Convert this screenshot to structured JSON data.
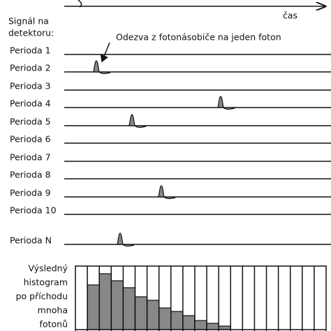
{
  "header": {
    "axis_label": "čas",
    "signal_label": [
      "Signál na",
      "detektoru:"
    ]
  },
  "annotation": "Odezva z fotonásobiče na jeden foton",
  "periods": [
    "Perioda 1",
    "Perioda 2",
    "Perioda 3",
    "Perioda 4",
    "Perioda 5",
    "Perioda 6",
    "Perioda 7",
    "Perioda 8",
    "Perioda 9",
    "Perioda 10",
    "Perioda N"
  ],
  "histogram": {
    "label": [
      "Výsledný",
      "histogram",
      "po příchodu",
      "mnoha",
      "fotonů"
    ],
    "values": [
      0,
      64,
      80,
      70,
      60,
      47,
      42,
      31,
      26,
      20,
      13,
      9,
      5,
      0,
      0,
      0,
      0,
      0,
      0,
      0,
      0
    ]
  }
}
